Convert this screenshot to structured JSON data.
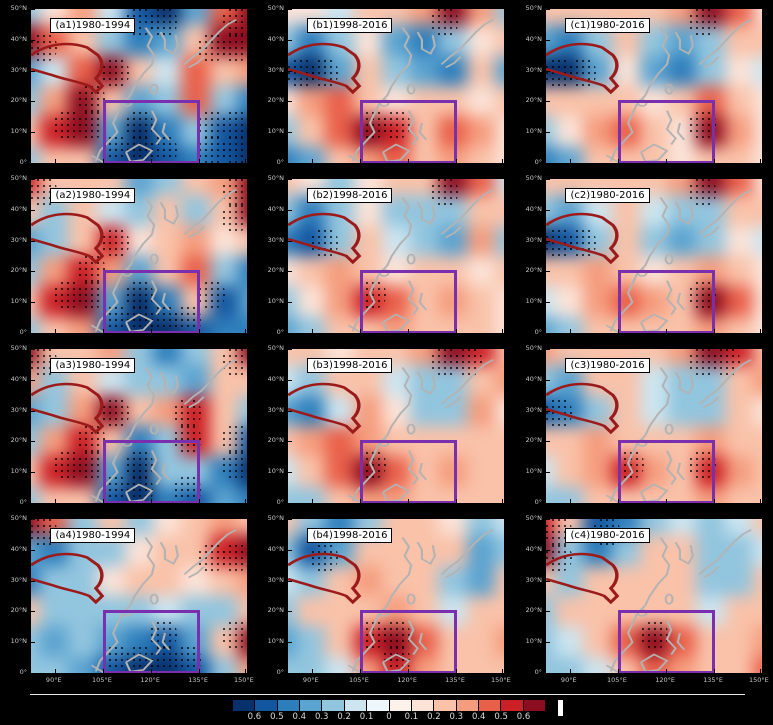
{
  "chart_data": {
    "type": "heatmap",
    "description": "4x3 grid of correlation/regression map panels over East Asia and the western North Pacific with significance stippling, purple study-region box (105-135E, 0-20N), and diverging blue-white-red colorbar.",
    "lon_range": [
      82.5,
      150
    ],
    "lat_range": [
      0,
      50
    ],
    "value_levels": [
      -0.6,
      -0.5,
      -0.4,
      -0.3,
      -0.2,
      -0.1,
      0,
      0.1,
      0.2,
      0.3,
      0.4,
      0.5,
      0.6
    ],
    "axes": {
      "y_ticks": [
        "50°N",
        "40°N",
        "30°N",
        "20°N",
        "10°N",
        "0°"
      ],
      "y_tick_pos": [
        0,
        20,
        40,
        60,
        80,
        100
      ],
      "x_ticks": [
        "90°E",
        "105°E",
        "120°E",
        "135°E",
        "150°E"
      ],
      "x_tick_pos": [
        11,
        33.3,
        55.6,
        77.8,
        99
      ]
    },
    "box_region": {
      "lon_min": 105,
      "lon_max": 135,
      "lat_min": 0,
      "lat_max": 20,
      "color": "#7a2fae"
    },
    "palette": {
      "-6": "#08306b",
      "-5": "#1356a0",
      "-4": "#2e7ebc",
      "-3": "#5ba3d0",
      "-2": "#92c5de",
      "-1": "#cce5f0",
      "0": "#ffffff",
      "1": "#fbe3d8",
      "2": "#f9c2a9",
      "3": "#f59d7e",
      "4": "#e9604a",
      "5": "#cb2026",
      "6": "#8c0d20"
    },
    "coast_color": "#b3b3b3",
    "plateau_color": "#9b1b1b",
    "panels": [
      {
        "id": "a1",
        "label": "(a1)1980-1994",
        "field": [
          [
            -2,
            1,
            3,
            -1,
            -5,
            -6,
            -3,
            4,
            6
          ],
          [
            6,
            4,
            2,
            -2,
            -4,
            -3,
            2,
            6,
            6
          ],
          [
            -3,
            -1,
            4,
            6,
            2,
            -1,
            4,
            2,
            3
          ],
          [
            -2,
            3,
            6,
            2,
            -3,
            -2,
            4,
            -2,
            -4
          ],
          [
            2,
            5,
            6,
            -3,
            -6,
            -4,
            -2,
            -5,
            -6
          ],
          [
            -2,
            2,
            2,
            -5,
            -6,
            -5,
            -4,
            -5,
            -6
          ]
        ]
      },
      {
        "id": "b1",
        "label": "(b1)1998-2016",
        "field": [
          [
            1,
            1,
            -1,
            2,
            2,
            3,
            6,
            3,
            -2
          ],
          [
            -2,
            -4,
            -2,
            1,
            -3,
            -4,
            -2,
            1,
            2
          ],
          [
            -5,
            -6,
            -3,
            2,
            -2,
            -3,
            -4,
            2,
            -3
          ],
          [
            1,
            3,
            4,
            2,
            1,
            2,
            2,
            1,
            2
          ],
          [
            -2,
            2,
            4,
            6,
            5,
            2,
            4,
            3,
            1
          ],
          [
            -4,
            -3,
            2,
            3,
            4,
            2,
            3,
            2,
            1
          ]
        ]
      },
      {
        "id": "c1",
        "label": "(c1)1980-2016",
        "field": [
          [
            2,
            2,
            2,
            2,
            2,
            3,
            6,
            4,
            1
          ],
          [
            -3,
            -4,
            -2,
            2,
            -2,
            -3,
            -2,
            2,
            2
          ],
          [
            -6,
            -6,
            -3,
            1,
            -3,
            -4,
            -2,
            1,
            -1
          ],
          [
            2,
            2,
            2,
            2,
            1,
            2,
            4,
            2,
            1
          ],
          [
            -2,
            1,
            3,
            4,
            2,
            1,
            6,
            3,
            1
          ],
          [
            -4,
            -3,
            2,
            2,
            2,
            1,
            2,
            2,
            1
          ]
        ]
      },
      {
        "id": "a2",
        "label": "(a2)1980-1994",
        "field": [
          [
            5,
            2,
            2,
            2,
            -3,
            -2,
            2,
            3,
            6
          ],
          [
            2,
            -2,
            2,
            -1,
            -2,
            2,
            -2,
            2,
            6
          ],
          [
            -3,
            -2,
            2,
            5,
            1,
            2,
            3,
            1,
            2
          ],
          [
            -2,
            3,
            5,
            3,
            -3,
            2,
            4,
            -2,
            -4
          ],
          [
            2,
            5,
            6,
            -3,
            -6,
            -4,
            2,
            -5,
            -3
          ],
          [
            -2,
            2,
            3,
            -5,
            -6,
            -6,
            -5,
            -4,
            -4
          ]
        ]
      },
      {
        "id": "b2",
        "label": "(b2)1998-2016",
        "field": [
          [
            2,
            1,
            -2,
            1,
            2,
            2,
            6,
            4,
            -1
          ],
          [
            -2,
            -4,
            -2,
            1,
            -2,
            -2,
            -2,
            2,
            2
          ],
          [
            -4,
            -5,
            -2,
            2,
            -1,
            -2,
            -3,
            3,
            -2
          ],
          [
            1,
            2,
            3,
            2,
            1,
            2,
            2,
            1,
            2
          ],
          [
            -2,
            1,
            3,
            5,
            4,
            2,
            3,
            2,
            1
          ],
          [
            -3,
            -2,
            2,
            2,
            3,
            2,
            2,
            2,
            1
          ]
        ]
      },
      {
        "id": "c2",
        "label": "(c2)1980-2016",
        "field": [
          [
            2,
            2,
            2,
            2,
            2,
            3,
            6,
            4,
            1
          ],
          [
            -2,
            -3,
            -1,
            2,
            -1,
            -2,
            -2,
            2,
            2
          ],
          [
            -6,
            -5,
            -2,
            2,
            -2,
            -3,
            -2,
            1,
            -1
          ],
          [
            2,
            2,
            3,
            2,
            1,
            2,
            3,
            2,
            1
          ],
          [
            -1,
            1,
            3,
            4,
            3,
            2,
            6,
            4,
            1
          ],
          [
            -3,
            -2,
            2,
            2,
            2,
            2,
            3,
            2,
            1
          ]
        ]
      },
      {
        "id": "a3",
        "label": "(a3)1980-1994",
        "field": [
          [
            6,
            2,
            2,
            3,
            -2,
            -4,
            -2,
            2,
            6
          ],
          [
            3,
            -2,
            2,
            -1,
            -2,
            -2,
            -3,
            2,
            2
          ],
          [
            -3,
            -2,
            3,
            6,
            2,
            3,
            5,
            2,
            -2
          ],
          [
            -2,
            3,
            5,
            2,
            -4,
            -2,
            5,
            2,
            -5
          ],
          [
            2,
            5,
            6,
            -3,
            -6,
            -2,
            -2,
            -4,
            -6
          ],
          [
            -2,
            2,
            2,
            -5,
            -6,
            -4,
            -5,
            -3,
            -4
          ]
        ]
      },
      {
        "id": "b3",
        "label": "(b3)1998-2016",
        "field": [
          [
            2,
            2,
            1,
            2,
            2,
            3,
            6,
            5,
            2
          ],
          [
            -1,
            -2,
            2,
            2,
            -1,
            -2,
            -2,
            2,
            3
          ],
          [
            -3,
            -4,
            -1,
            3,
            1,
            -2,
            -2,
            3,
            1
          ],
          [
            2,
            3,
            4,
            3,
            2,
            2,
            2,
            2,
            2
          ],
          [
            -1,
            2,
            4,
            6,
            4,
            2,
            3,
            2,
            2
          ],
          [
            -2,
            -2,
            2,
            3,
            3,
            2,
            2,
            2,
            2
          ]
        ]
      },
      {
        "id": "c3",
        "label": "(c3)1980-2016",
        "field": [
          [
            3,
            2,
            2,
            2,
            2,
            3,
            6,
            5,
            2
          ],
          [
            -2,
            -3,
            2,
            2,
            -1,
            -2,
            -2,
            2,
            3
          ],
          [
            -5,
            -4,
            -2,
            2,
            -1,
            -2,
            -2,
            2,
            1
          ],
          [
            2,
            2,
            3,
            2,
            2,
            2,
            3,
            2,
            2
          ],
          [
            -1,
            2,
            3,
            5,
            3,
            2,
            5,
            3,
            2
          ],
          [
            -2,
            -2,
            2,
            2,
            2,
            2,
            3,
            2,
            2
          ]
        ]
      },
      {
        "id": "a4",
        "label": "(a4)1980-1994",
        "field": [
          [
            6,
            4,
            -2,
            2,
            -2,
            1,
            2,
            3,
            2
          ],
          [
            -3,
            -4,
            -2,
            -2,
            1,
            2,
            2,
            5,
            6
          ],
          [
            -4,
            -2,
            -2,
            1,
            2,
            2,
            1,
            2,
            3
          ],
          [
            2,
            -2,
            -2,
            -2,
            -2,
            -1,
            -2,
            -2,
            2
          ],
          [
            -2,
            -3,
            -2,
            -3,
            -4,
            -5,
            -3,
            2,
            6
          ],
          [
            -2,
            -2,
            -3,
            -5,
            -6,
            -6,
            -5,
            -2,
            3
          ]
        ]
      },
      {
        "id": "b4",
        "label": "(b4)1998-2016",
        "field": [
          [
            2,
            -2,
            -4,
            -2,
            2,
            2,
            1,
            -2,
            -1
          ],
          [
            -2,
            -5,
            -3,
            2,
            2,
            2,
            2,
            -3,
            -2
          ],
          [
            -1,
            -2,
            2,
            3,
            2,
            2,
            -2,
            -3,
            2
          ],
          [
            -2,
            2,
            2,
            2,
            3,
            2,
            -1,
            2,
            2
          ],
          [
            -3,
            -2,
            2,
            5,
            6,
            4,
            2,
            2,
            3
          ],
          [
            -2,
            -2,
            -1,
            3,
            5,
            3,
            2,
            2,
            2
          ]
        ]
      },
      {
        "id": "c4",
        "label": "(c4)1980-2016",
        "field": [
          [
            5,
            2,
            -5,
            -4,
            -2,
            -1,
            -2,
            -1,
            2
          ],
          [
            6,
            -2,
            -4,
            -2,
            2,
            2,
            -2,
            -2,
            -1
          ],
          [
            2,
            -2,
            2,
            2,
            2,
            2,
            -2,
            -2,
            2
          ],
          [
            -2,
            2,
            2,
            2,
            2,
            2,
            -1,
            2,
            2
          ],
          [
            -2,
            -1,
            2,
            4,
            6,
            4,
            2,
            2,
            3
          ],
          [
            -2,
            -2,
            -1,
            2,
            4,
            3,
            2,
            2,
            4
          ]
        ]
      }
    ],
    "colorbar": {
      "segments": [
        "#08306b",
        "#1356a0",
        "#2e7ebc",
        "#5ba3d0",
        "#92c5de",
        "#cce5f0",
        "#eef7fb",
        "#fdf1ec",
        "#fbe3d8",
        "#f9c2a9",
        "#f59d7e",
        "#e9604a",
        "#cb2026",
        "#8c0d20"
      ],
      "labels": [
        "0.6",
        "0.5",
        "0.4",
        "0.3",
        "0.2",
        "0.1",
        "0",
        "0.1",
        "0.2",
        "0.3",
        "0.4",
        "0.5",
        "0.6"
      ]
    }
  }
}
